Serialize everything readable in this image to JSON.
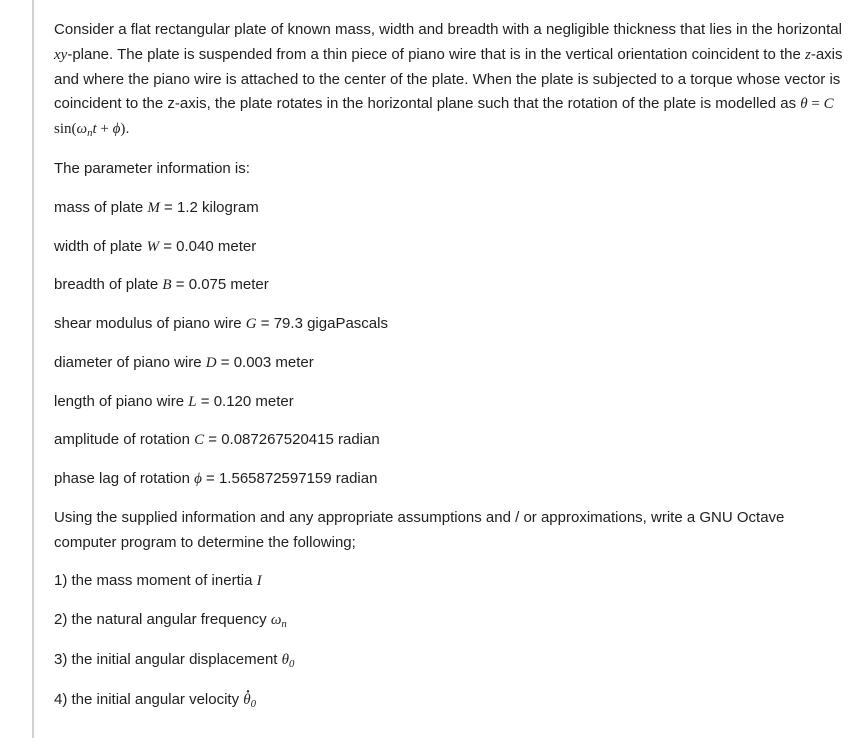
{
  "text_color": "#1f1f1f",
  "background_color": "#ffffff",
  "border_color": "#d0d0d0",
  "font_size_body": 15,
  "intro": {
    "seg1": "Consider a flat rectangular plate of known mass, width and breadth with a negligible thickness that lies in the horizontal ",
    "var1": "xy",
    "seg2": "-plane. The plate is suspended from a thin piece of piano wire that is in the vertical orientation coincident to the ",
    "var2": "z",
    "seg3": "-axis and where the piano wire is attached to the center of the plate. When the plate is subjected to a torque whose vector is coincident to the z-axis, the plate rotates in the horizontal plane such that the rotation of the plate is modelled as ",
    "eq_theta": "θ",
    "eq_equals": " = ",
    "eq_C": "C",
    "eq_sin": " sin(",
    "eq_omega": "ω",
    "eq_omega_sub": "n",
    "eq_t": "t",
    "eq_plus": " + ",
    "eq_phi": "ϕ",
    "eq_close": ")",
    "period": "."
  },
  "param_heading": "The parameter information is:",
  "params": {
    "mass": {
      "label": "mass of plate ",
      "sym": "M",
      "suffix": " = 1.2 kilogram"
    },
    "width": {
      "label": "width of plate ",
      "sym": "W",
      "suffix": " = 0.040 meter"
    },
    "breadth": {
      "label": "breadth of plate ",
      "sym": "B",
      "suffix": " = 0.075 meter"
    },
    "shear": {
      "label": "shear modulus of piano wire ",
      "sym": "G",
      "suffix": " = 79.3 gigaPascals"
    },
    "diameter": {
      "label": "diameter of piano wire ",
      "sym": "D",
      "suffix": " = 0.003 meter"
    },
    "length": {
      "label": "length of piano wire ",
      "sym": "L",
      "suffix": " = 0.120 meter"
    },
    "amplitude": {
      "label": "amplitude of rotation ",
      "sym": "C",
      "suffix": " = 0.087267520415 radian"
    },
    "phase": {
      "label": "phase lag of rotation ",
      "sym": "ϕ",
      "suffix": " = 1.565872597159 radian"
    }
  },
  "instruction": "Using the supplied information and any appropriate assumptions and / or approximations, write a GNU Octave computer program to determine the following;",
  "questions": {
    "q1": {
      "label": "1) the mass moment of inertia ",
      "sym": "I",
      "sub": ""
    },
    "q2": {
      "label": "2) the natural angular frequency ",
      "sym": "ω",
      "sub": "n"
    },
    "q3": {
      "label": "3) the initial angular displacement ",
      "sym": "θ",
      "sub": "0"
    },
    "q4": {
      "label": "4) the initial angular velocity ",
      "sym": "θ",
      "sub": "0"
    }
  }
}
